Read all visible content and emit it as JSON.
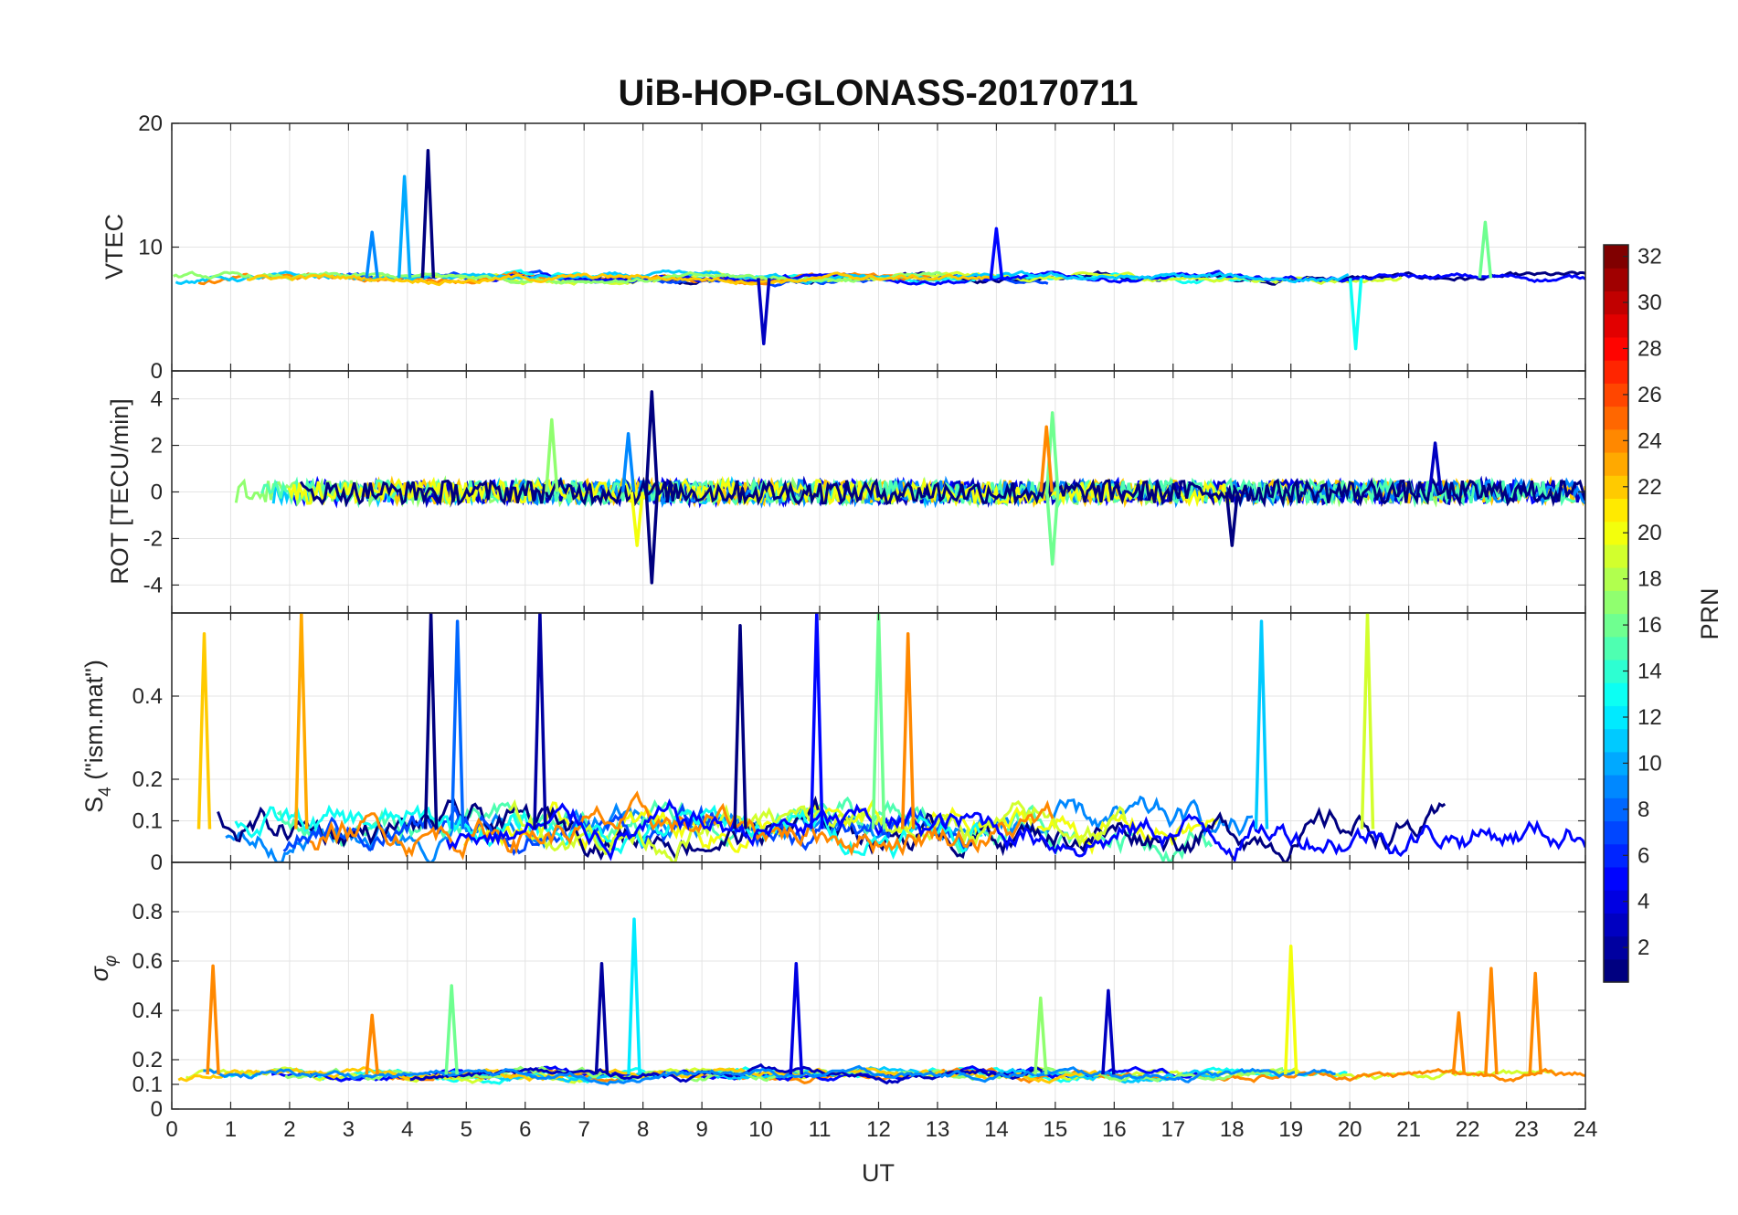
{
  "chart_data": {
    "type": "line",
    "title": "UiB-HOP-GLONASS-20170711",
    "xlabel": "UT",
    "xlim": [
      0,
      24
    ],
    "x_ticks": [
      "0",
      "1",
      "2",
      "3",
      "4",
      "5",
      "6",
      "7",
      "8",
      "9",
      "10",
      "11",
      "12",
      "13",
      "14",
      "15",
      "16",
      "17",
      "18",
      "19",
      "20",
      "21",
      "22",
      "23",
      "24"
    ],
    "grid": true,
    "colorbar": {
      "label": "PRN",
      "colormap": "jet",
      "range": [
        1,
        32
      ],
      "ticks": [
        "2",
        "4",
        "6",
        "8",
        "10",
        "12",
        "14",
        "16",
        "18",
        "20",
        "22",
        "24",
        "26",
        "28",
        "30",
        "32"
      ]
    },
    "panels": [
      {
        "ylabel": "VTEC",
        "ylim": [
          0,
          20
        ],
        "y_ticks": [
          {
            "value": 0,
            "label": "0"
          },
          {
            "value": 10,
            "label": "10"
          },
          {
            "value": 20,
            "label": "20"
          }
        ],
        "base": 7.5,
        "noise": 0.8,
        "zero_line": false,
        "spikes": [
          {
            "t": 3.95,
            "v": 15.7,
            "prn": 10
          },
          {
            "t": 4.35,
            "v": 17.8,
            "prn": 1
          },
          {
            "t": 3.4,
            "v": 11.2,
            "prn": 9
          },
          {
            "t": 14.0,
            "v": 11.5,
            "prn": 5
          },
          {
            "t": 22.3,
            "v": 12.0,
            "prn": 16
          },
          {
            "t": 10.05,
            "v": 2.2,
            "prn": 3
          },
          {
            "t": 20.1,
            "v": 1.8,
            "prn": 13
          }
        ]
      },
      {
        "ylabel": "ROT [TECU/min]",
        "ylim": [
          -5.2,
          5.2
        ],
        "y_ticks": [
          {
            "value": -4,
            "label": "-4"
          },
          {
            "value": -2,
            "label": "-2"
          },
          {
            "value": 0,
            "label": "0"
          },
          {
            "value": 2,
            "label": "2"
          },
          {
            "value": 4,
            "label": "4"
          }
        ],
        "base": 0,
        "noise": 0.5,
        "zero_line": true,
        "spikes": [
          {
            "t": 8.15,
            "v": 4.3,
            "prn": 1
          },
          {
            "t": 8.15,
            "v": -3.9,
            "prn": 1
          },
          {
            "t": 6.45,
            "v": 3.1,
            "prn": 17
          },
          {
            "t": 7.75,
            "v": 2.5,
            "prn": 9
          },
          {
            "t": 14.95,
            "v": 3.4,
            "prn": 16
          },
          {
            "t": 14.95,
            "v": -3.1,
            "prn": 16
          },
          {
            "t": 14.85,
            "v": 2.8,
            "prn": 24
          },
          {
            "t": 7.9,
            "v": -2.3,
            "prn": 20
          },
          {
            "t": 18.0,
            "v": -2.3,
            "prn": 1
          },
          {
            "t": 21.45,
            "v": 2.1,
            "prn": 3
          }
        ]
      },
      {
        "ylabel": "S4 (\"ism.mat\")",
        "ylabel_main": "S",
        "ylabel_sub": "4",
        "ylabel_rest": " (\"ism.mat\")",
        "ylim": [
          0,
          0.6
        ],
        "y_ticks": [
          {
            "value": 0,
            "label": "0"
          },
          {
            "value": 0.1,
            "label": "0.1"
          },
          {
            "value": 0.2,
            "label": "0.2"
          },
          {
            "value": 0.4,
            "label": "0.4"
          }
        ],
        "base": 0.08,
        "noise": 0.12,
        "zero_line": false,
        "spikes": [
          {
            "t": 4.4,
            "v": 0.6,
            "prn": 1
          },
          {
            "t": 6.25,
            "v": 0.6,
            "prn": 2
          },
          {
            "t": 10.95,
            "v": 0.6,
            "prn": 5
          },
          {
            "t": 2.2,
            "v": 0.6,
            "prn": 23
          },
          {
            "t": 0.55,
            "v": 0.55,
            "prn": 22
          },
          {
            "t": 12.0,
            "v": 0.6,
            "prn": 16
          },
          {
            "t": 20.3,
            "v": 0.6,
            "prn": 19
          },
          {
            "t": 9.65,
            "v": 0.57,
            "prn": 1
          },
          {
            "t": 18.5,
            "v": 0.58,
            "prn": 11
          },
          {
            "t": 12.5,
            "v": 0.55,
            "prn": 24
          },
          {
            "t": 4.85,
            "v": 0.58,
            "prn": 8
          }
        ]
      },
      {
        "ylabel": "σφ",
        "ylabel_main": "σ",
        "ylabel_sub": "φ",
        "ylim": [
          0,
          1
        ],
        "y_ticks": [
          {
            "value": 0,
            "label": "0"
          },
          {
            "value": 0.1,
            "label": "0.1"
          },
          {
            "value": 0.2,
            "label": "0.2"
          },
          {
            "value": 0.4,
            "label": "0.4"
          },
          {
            "value": 0.6,
            "label": "0.6"
          },
          {
            "value": 0.8,
            "label": "0.8"
          }
        ],
        "base": 0.14,
        "noise": 0.05,
        "zero_line": false,
        "spikes": [
          {
            "t": 7.85,
            "v": 0.77,
            "prn": 12
          },
          {
            "t": 19.0,
            "v": 0.66,
            "prn": 20
          },
          {
            "t": 0.7,
            "v": 0.58,
            "prn": 24
          },
          {
            "t": 7.3,
            "v": 0.59,
            "prn": 2
          },
          {
            "t": 10.6,
            "v": 0.59,
            "prn": 4
          },
          {
            "t": 22.4,
            "v": 0.57,
            "prn": 24
          },
          {
            "t": 23.15,
            "v": 0.55,
            "prn": 24
          },
          {
            "t": 4.75,
            "v": 0.5,
            "prn": 16
          },
          {
            "t": 15.9,
            "v": 0.48,
            "prn": 3
          },
          {
            "t": 14.75,
            "v": 0.45,
            "prn": 17
          },
          {
            "t": 3.4,
            "v": 0.38,
            "prn": 24
          },
          {
            "t": 21.85,
            "v": 0.39,
            "prn": 24
          }
        ]
      }
    ]
  }
}
